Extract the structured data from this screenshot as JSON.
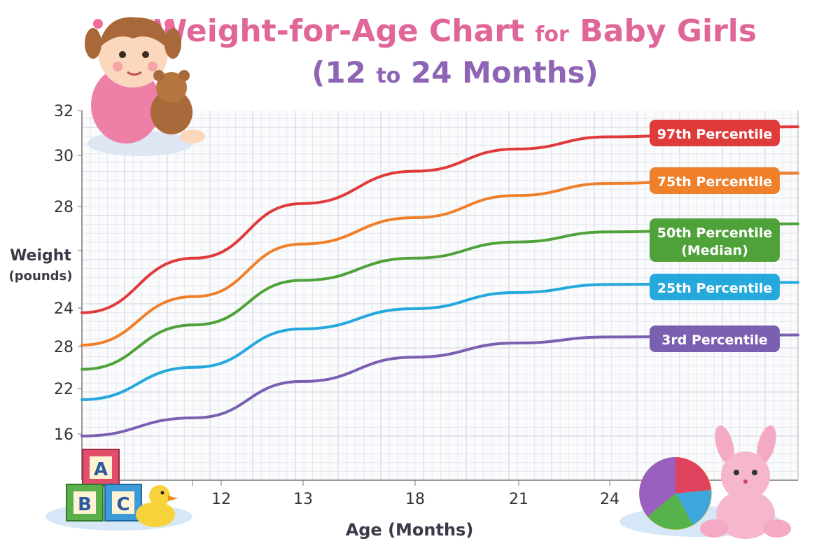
{
  "chart_data": {
    "type": "line",
    "title_parts": {
      "a": "Weight-for-Age Chart",
      "b": "for",
      "c": "Baby Girls"
    },
    "subtitle_parts": {
      "a": "(12",
      "b": "to",
      "c": "24 Months)"
    },
    "xlabel": "Age (Months)",
    "ylabel": "Weight",
    "ylabel_unit": "(pounds)",
    "x_tick_labels": [
      "12",
      "13",
      "18",
      "21",
      "24"
    ],
    "y_tick_labels": [
      "32",
      "30",
      "28",
      "",
      "24",
      "28",
      "22",
      "16"
    ],
    "ylim": [
      16,
      32
    ],
    "xlim": [
      11,
      25
    ],
    "grid": true,
    "legend_placement": "right, inline labels",
    "x": [
      11,
      13.2,
      15.3,
      17.5,
      19.5,
      21.3,
      25
    ],
    "series": [
      {
        "name": "97th Percentile",
        "color": "#e03b3b",
        "values": [
          22.0,
          24.7,
          27.4,
          29.0,
          30.1,
          30.7,
          31.2
        ]
      },
      {
        "name": "75th Percentile",
        "color": "#f07f2a",
        "values": [
          20.4,
          22.8,
          25.4,
          26.7,
          27.8,
          28.4,
          28.9
        ]
      },
      {
        "name": "50th Percentile",
        "sub": "(Median)",
        "color": "#4fa23a",
        "values": [
          19.2,
          21.4,
          23.6,
          24.7,
          25.5,
          26.0,
          26.4
        ]
      },
      {
        "name": "25th Percentile",
        "color": "#25a8dc",
        "values": [
          17.7,
          19.3,
          21.2,
          22.2,
          23.0,
          23.4,
          23.5
        ]
      },
      {
        "name": "3rd Percentile",
        "color": "#7b5fb0",
        "values": [
          15.9,
          16.8,
          18.6,
          19.8,
          20.5,
          20.8,
          20.9
        ]
      }
    ],
    "block_letters": [
      "A",
      "B",
      "C"
    ]
  }
}
